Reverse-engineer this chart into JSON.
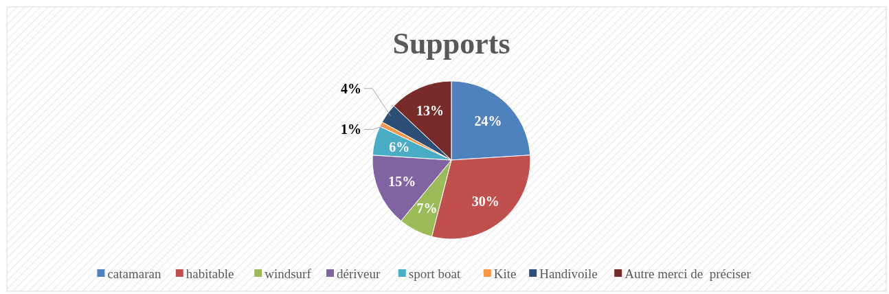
{
  "chart_data": {
    "type": "pie",
    "title": "Supports",
    "categories": [
      "catamaran",
      "habitable",
      "windsurf",
      "dériveur",
      "sport boat",
      "Kite",
      "Handivoile",
      "Autre merci de  préciser"
    ],
    "values": [
      24,
      30,
      7,
      15,
      6,
      1,
      4,
      13
    ],
    "colors": [
      "#4f81bd",
      "#c0504d",
      "#9bbb59",
      "#8064a2",
      "#4bacc6",
      "#f79646",
      "#2c4d75",
      "#772c2a"
    ],
    "value_labels": [
      "24%",
      "30%",
      "7%",
      "15%",
      "6%",
      "1%",
      "4%",
      "13%"
    ],
    "legend": "bottom"
  }
}
